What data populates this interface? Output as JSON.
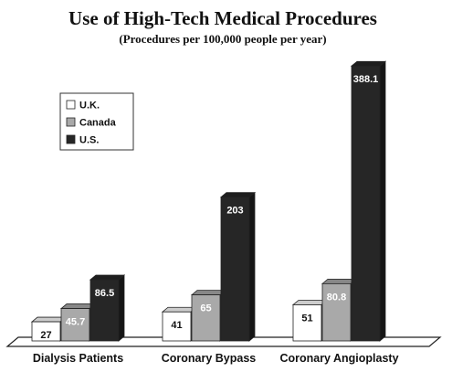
{
  "chart_data": {
    "type": "bar",
    "title": "Use of High-Tech Medical Procedures",
    "subtitle": "(Procedures per 100,000 people per year)",
    "categories": [
      "Dialysis Patients",
      "Coronary Bypass",
      "Coronary Angioplasty"
    ],
    "series": [
      {
        "name": "U.K.",
        "values": [
          27,
          41,
          51
        ],
        "value_labels": [
          "27",
          "41",
          "51"
        ],
        "color": "#ffffff",
        "label_color": "#111111"
      },
      {
        "name": "Canada",
        "values": [
          45.7,
          65,
          80.8
        ],
        "value_labels": [
          "45.7",
          "65",
          "80.8"
        ],
        "color": "#a9a9a9",
        "label_color": "#ffffff"
      },
      {
        "name": "U.S.",
        "values": [
          86.5,
          203,
          388.1
        ],
        "value_labels": [
          "86.5",
          "203",
          "388.1"
        ],
        "color": "#262626",
        "label_color": "#ffffff"
      }
    ],
    "ylim": [
      0,
      400
    ],
    "grid": false,
    "legend_position": "top-left"
  }
}
